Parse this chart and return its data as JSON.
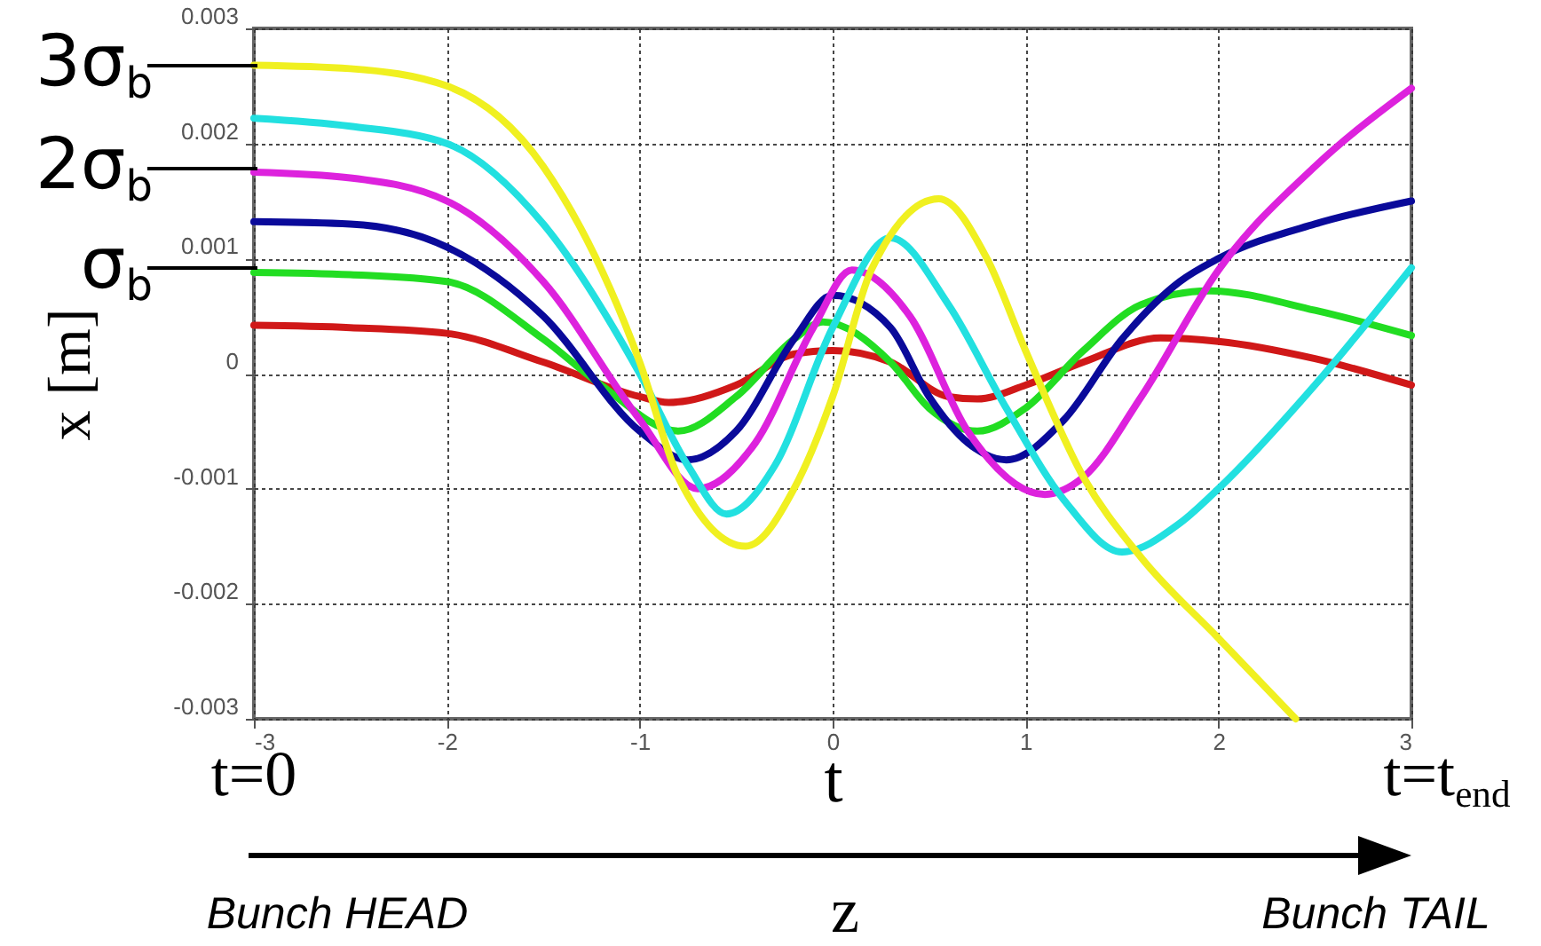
{
  "chart_data": {
    "type": "line",
    "xlabel": "t",
    "ylabel": "x [m]",
    "xlim": [
      -3,
      3
    ],
    "xticks": [
      -3,
      -2,
      -1,
      0,
      1,
      2,
      3
    ],
    "ylim": [
      -0.003,
      0.003
    ],
    "yticks": [
      -0.003,
      -0.002,
      -0.001,
      0,
      0.001,
      0.002,
      0.003
    ],
    "grid": true,
    "marker": "none",
    "line_style": "solid",
    "series": [
      {
        "color": "#d01818",
        "x": [
          -3,
          -2.5,
          -2,
          -1.5,
          -1,
          -0.85,
          -0.5,
          -0.2,
          0,
          0.3,
          0.6,
          0.75,
          1,
          1.3,
          1.7,
          2,
          2.5,
          3
        ],
        "values": [
          0.00042,
          0.0004,
          0.00035,
          0.0001,
          -0.0002,
          -0.00025,
          -0.0001,
          0.00017,
          0.0002,
          0.0001,
          -0.0002,
          -0.00022,
          -0.0001,
          0.0001,
          0.00031,
          0.00028,
          0.00013,
          -0.0001
        ]
      },
      {
        "color": "#22dd22",
        "x": [
          -3,
          -2.5,
          -2,
          -1.5,
          -1.2,
          -0.8,
          -0.5,
          -0.2,
          -0.05,
          0.3,
          0.5,
          0.75,
          1,
          1.3,
          1.6,
          1.95,
          2.5,
          3
        ],
        "values": [
          0.00088,
          0.00086,
          0.0008,
          0.0003,
          -0.0001,
          -0.0005,
          -0.0002,
          0.0003,
          0.00045,
          0.0001,
          -0.0003,
          -0.0005,
          -0.0003,
          0.0002,
          0.0006,
          0.00072,
          0.00055,
          0.00033
        ]
      },
      {
        "color": "#0a0a9a",
        "x": [
          -3,
          -2.5,
          -2,
          -1.5,
          -1,
          -0.75,
          -0.5,
          -0.2,
          0,
          0.3,
          0.5,
          0.7,
          0.9,
          1.2,
          1.5,
          1.8,
          2,
          2.5,
          3
        ],
        "values": [
          0.00132,
          0.0013,
          0.0011,
          0.0005,
          -0.0005,
          -0.00075,
          -0.0005,
          0.0003,
          0.00068,
          0.0004,
          -0.0002,
          -0.0006,
          -0.00075,
          -0.0004,
          0.0003,
          0.0008,
          0.001,
          0.0013,
          0.0015
        ]
      },
      {
        "color": "#dd22dd",
        "x": [
          -3,
          -2.5,
          -2,
          -1.5,
          -1,
          -0.7,
          -0.4,
          -0.1,
          0.1,
          0.4,
          0.7,
          1.1,
          1.3,
          1.6,
          2,
          2.5,
          3
        ],
        "values": [
          0.00175,
          0.0017,
          0.0015,
          0.0008,
          -0.0004,
          -0.001,
          -0.0006,
          0.0004,
          0.0009,
          0.0005,
          -0.0005,
          -0.00105,
          -0.0009,
          -0.0002,
          0.0009,
          0.0018,
          0.00248
        ]
      },
      {
        "color": "#22e0e0",
        "x": [
          -3,
          -2.5,
          -2,
          -1.5,
          -1,
          -0.75,
          -0.55,
          -0.3,
          0,
          0.3,
          0.6,
          0.9,
          1.2,
          1.5,
          1.8,
          2,
          2.5,
          3
        ],
        "values": [
          0.00222,
          0.00215,
          0.002,
          0.0013,
          0,
          -0.0008,
          -0.00122,
          -0.0008,
          0.0004,
          0.00118,
          0.0006,
          -0.0003,
          -0.0011,
          -0.00155,
          -0.0013,
          -0.001,
          -0.0001,
          0.00092
        ]
      },
      {
        "color": "#f0f020",
        "x": [
          -3,
          -2.5,
          -2,
          -1.5,
          -1,
          -0.8,
          -0.45,
          -0.2,
          0,
          0.2,
          0.55,
          0.8,
          1,
          1.3,
          1.6,
          2,
          2.4
        ],
        "values": [
          0.00268,
          0.00265,
          0.0025,
          0.0018,
          0.0001,
          -0.0009,
          -0.0015,
          -0.001,
          -0.0002,
          0.0009,
          0.00152,
          0.001,
          0.0002,
          -0.0009,
          -0.0016,
          -0.0023,
          -0.003
        ]
      }
    ],
    "annotations": [
      "3σ$_{b}$",
      "2σ$_{b}$",
      "σ$_{b}$",
      "t=0",
      "t=t$_{end}$",
      "Bunch HEAD",
      "z",
      "Bunch TAIL"
    ]
  }
}
